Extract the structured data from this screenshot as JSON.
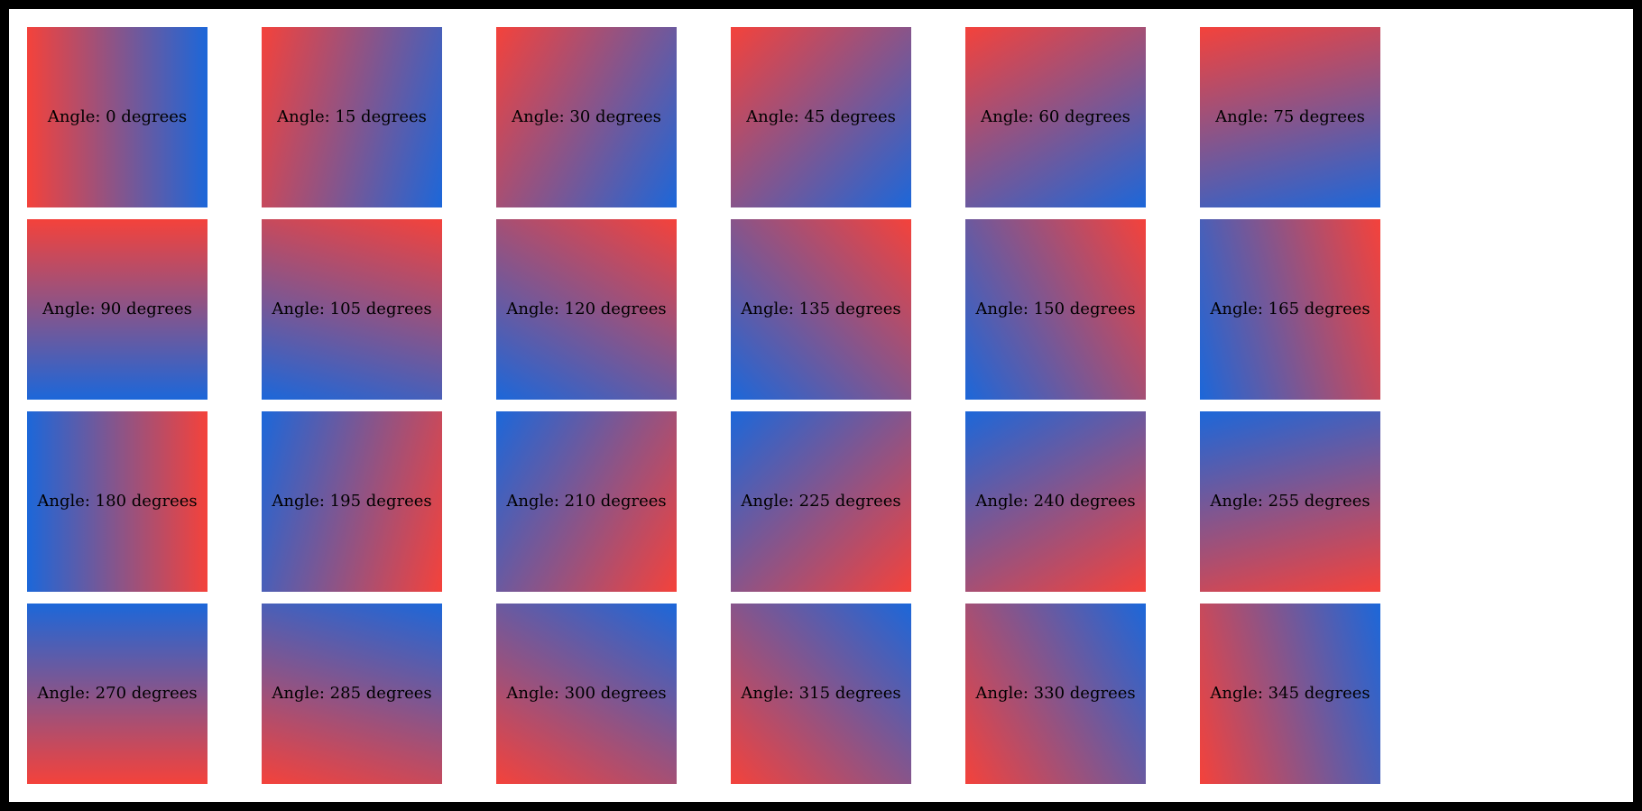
{
  "page": {
    "background_color": "#ffffff",
    "frame_color": "#000000"
  },
  "gradient": {
    "start_color": "#f4423b",
    "end_color": "#1c67d9",
    "label_color": "#000000",
    "angle_convention": "label angle 0 = red left to blue right; css angle = label angle + 90"
  },
  "tiles": [
    {
      "angle": 0,
      "label": "Angle: 0 degrees"
    },
    {
      "angle": 15,
      "label": "Angle: 15 degrees"
    },
    {
      "angle": 30,
      "label": "Angle: 30 degrees"
    },
    {
      "angle": 45,
      "label": "Angle: 45 degrees"
    },
    {
      "angle": 60,
      "label": "Angle: 60 degrees"
    },
    {
      "angle": 75,
      "label": "Angle: 75 degrees"
    },
    {
      "angle": 90,
      "label": "Angle: 90 degrees"
    },
    {
      "angle": 105,
      "label": "Angle: 105 degrees"
    },
    {
      "angle": 120,
      "label": "Angle: 120 degrees"
    },
    {
      "angle": 135,
      "label": "Angle: 135 degrees"
    },
    {
      "angle": 150,
      "label": "Angle: 150 degrees"
    },
    {
      "angle": 165,
      "label": "Angle: 165 degrees"
    },
    {
      "angle": 180,
      "label": "Angle: 180 degrees"
    },
    {
      "angle": 195,
      "label": "Angle: 195 degrees"
    },
    {
      "angle": 210,
      "label": "Angle: 210 degrees"
    },
    {
      "angle": 225,
      "label": "Angle: 225 degrees"
    },
    {
      "angle": 240,
      "label": "Angle: 240 degrees"
    },
    {
      "angle": 255,
      "label": "Angle: 255 degrees"
    },
    {
      "angle": 270,
      "label": "Angle: 270 degrees"
    },
    {
      "angle": 285,
      "label": "Angle: 285 degrees"
    },
    {
      "angle": 300,
      "label": "Angle: 300 degrees"
    },
    {
      "angle": 315,
      "label": "Angle: 315 degrees"
    },
    {
      "angle": 330,
      "label": "Angle: 330 degrees"
    },
    {
      "angle": 345,
      "label": "Angle: 345 degrees"
    }
  ]
}
